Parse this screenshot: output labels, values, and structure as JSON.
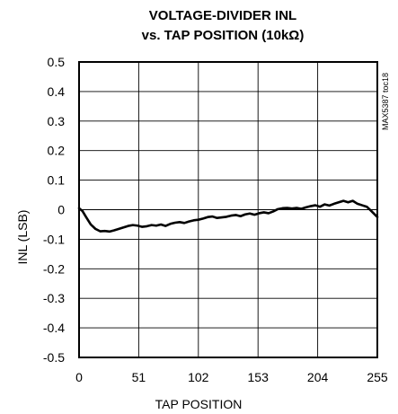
{
  "chart_data": {
    "type": "line",
    "title_lines": [
      "VOLTAGE-DIVIDER INL",
      "vs. TAP POSITION (10kΩ)"
    ],
    "xlabel": "TAP POSITION",
    "ylabel": "INL (LSB)",
    "xlim": [
      0,
      255
    ],
    "ylim": [
      -0.5,
      0.5
    ],
    "x_ticks": [
      {
        "value": 0,
        "label": "0"
      },
      {
        "value": 51,
        "label": "51"
      },
      {
        "value": 102,
        "label": "102"
      },
      {
        "value": 153,
        "label": "153"
      },
      {
        "value": 204,
        "label": "204"
      },
      {
        "value": 255,
        "label": "255"
      }
    ],
    "y_ticks": [
      {
        "value": 0.5,
        "label": "0.5"
      },
      {
        "value": 0.4,
        "label": "0.4"
      },
      {
        "value": 0.3,
        "label": "0.3"
      },
      {
        "value": 0.2,
        "label": "0.2"
      },
      {
        "value": 0.1,
        "label": "0.1"
      },
      {
        "value": 0,
        "label": "0"
      },
      {
        "value": -0.1,
        "label": "-0.1"
      },
      {
        "value": -0.2,
        "label": "-0.2"
      },
      {
        "value": -0.3,
        "label": "-0.3"
      },
      {
        "value": -0.4,
        "label": "-0.4"
      },
      {
        "value": -0.5,
        "label": "-0.5"
      }
    ],
    "grid": true,
    "side_note": "MAX5387 toc18",
    "series": [
      {
        "x": [
          0,
          3,
          6,
          10,
          14,
          18,
          22,
          26,
          30,
          34,
          38,
          42,
          46,
          50,
          54,
          58,
          62,
          66,
          70,
          74,
          78,
          82,
          86,
          90,
          94,
          98,
          102,
          106,
          110,
          114,
          118,
          122,
          126,
          130,
          134,
          138,
          142,
          146,
          150,
          154,
          158,
          162,
          166,
          170,
          174,
          178,
          182,
          186,
          190,
          194,
          198,
          202,
          206,
          210,
          214,
          218,
          222,
          226,
          230,
          234,
          238,
          242,
          246,
          250,
          255
        ],
        "y": [
          0.005,
          -0.005,
          -0.025,
          -0.05,
          -0.065,
          -0.073,
          -0.072,
          -0.074,
          -0.07,
          -0.065,
          -0.06,
          -0.055,
          -0.052,
          -0.054,
          -0.058,
          -0.056,
          -0.052,
          -0.054,
          -0.05,
          -0.055,
          -0.048,
          -0.044,
          -0.042,
          -0.045,
          -0.04,
          -0.036,
          -0.034,
          -0.03,
          -0.025,
          -0.023,
          -0.028,
          -0.026,
          -0.024,
          -0.02,
          -0.018,
          -0.022,
          -0.016,
          -0.013,
          -0.017,
          -0.012,
          -0.009,
          -0.012,
          -0.006,
          0.002,
          0.005,
          0.006,
          0.004,
          0.006,
          0.003,
          0.008,
          0.012,
          0.015,
          0.01,
          0.018,
          0.014,
          0.02,
          0.025,
          0.03,
          0.025,
          0.03,
          0.02,
          0.015,
          0.01,
          -0.005,
          -0.025
        ]
      }
    ]
  }
}
